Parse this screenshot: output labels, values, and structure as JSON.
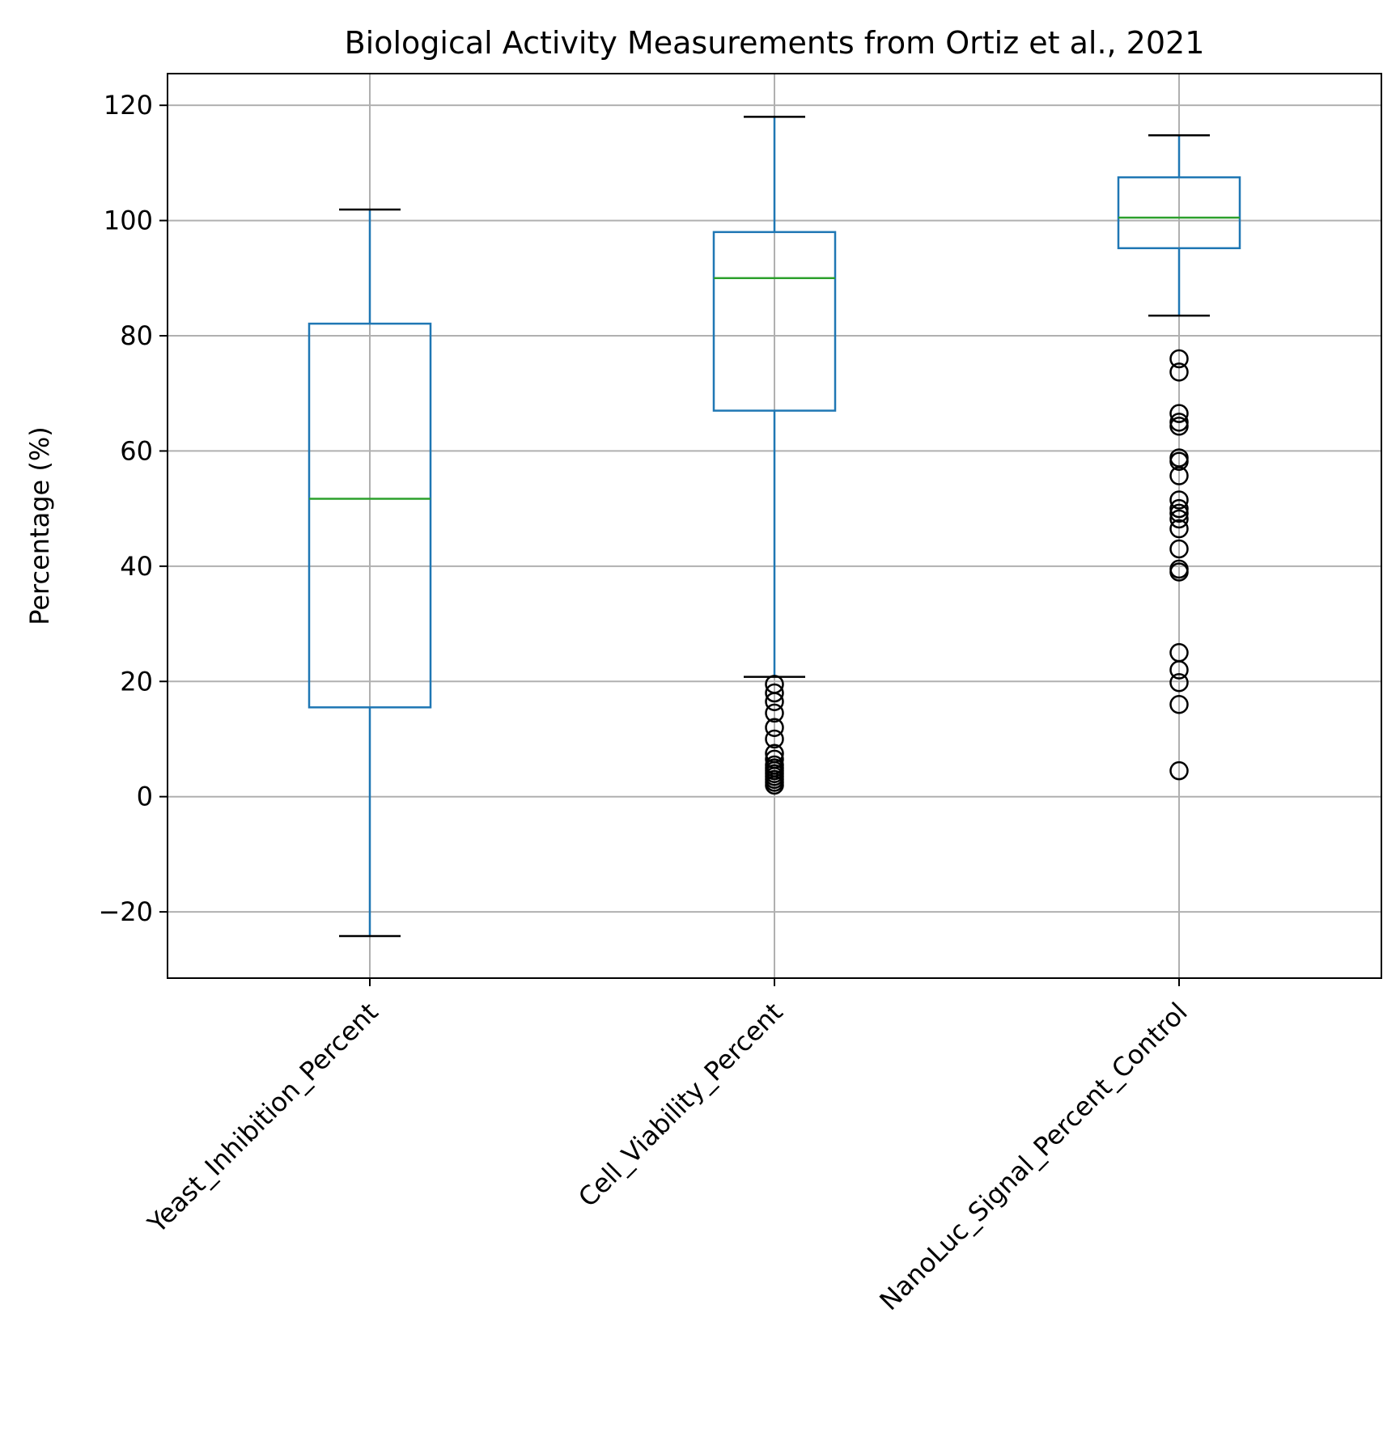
{
  "chart_data": {
    "type": "box",
    "title": "Biological Activity Measurements from Ortiz et al., 2021",
    "xlabel": "",
    "ylabel": "Percentage (%)",
    "ylim": [
      -31.5,
      125.5
    ],
    "yticks": [
      -20,
      0,
      20,
      40,
      60,
      80,
      100,
      120
    ],
    "grid": true,
    "colors": {
      "box": "#1f77b4",
      "median": "#2ca02c",
      "whisker_cap": "#000000",
      "flier": "#000000",
      "grid": "#b0b0b0"
    },
    "categories": [
      "Yeast_Inhibition_Percent",
      "Cell_Viability_Percent",
      "NanoLuc_Signal_Percent_Control"
    ],
    "boxes": [
      {
        "name": "Yeast_Inhibition_Percent",
        "q1": 15.5,
        "median": 51.7,
        "q3": 82.1,
        "whisker_low": -24.2,
        "whisker_high": 101.9,
        "fliers": []
      },
      {
        "name": "Cell_Viability_Percent",
        "q1": 67.0,
        "median": 90.0,
        "q3": 98.0,
        "whisker_low": 20.8,
        "whisker_high": 118.0,
        "fliers": [
          19.5,
          18.0,
          16.5,
          14.5,
          12.0,
          10.0,
          7.5,
          6.5,
          5.5,
          5.0,
          4.5,
          4.0,
          3.5,
          3.0,
          2.5,
          2.0
        ]
      },
      {
        "name": "NanoLuc_Signal_Percent_Control",
        "q1": 95.2,
        "median": 100.5,
        "q3": 107.5,
        "whisker_low": 83.5,
        "whisker_high": 114.8,
        "fliers": [
          76.0,
          73.7,
          66.5,
          65.0,
          64.3,
          58.8,
          58.2,
          55.7,
          51.5,
          50.0,
          49.2,
          48.2,
          46.5,
          43.0,
          39.5,
          39.0,
          25.0,
          22.0,
          19.8,
          16.0,
          4.5
        ]
      }
    ]
  }
}
